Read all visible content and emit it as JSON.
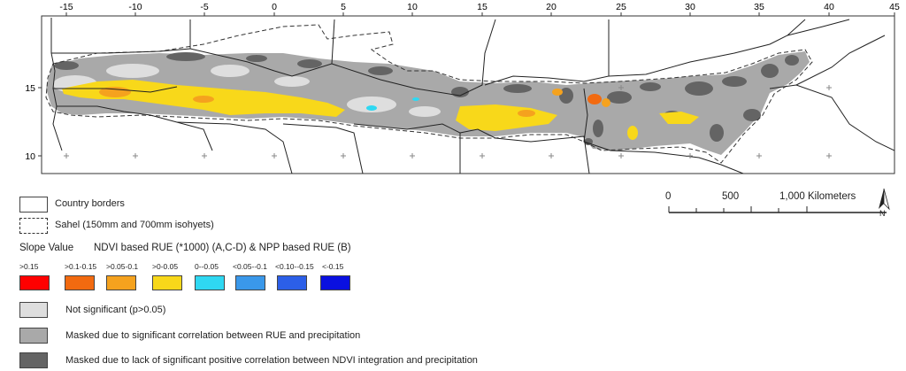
{
  "map": {
    "lon_ticks": [
      "-15",
      "-10",
      "-5",
      "0",
      "5",
      "10",
      "15",
      "20",
      "25",
      "30",
      "35",
      "40",
      "45"
    ],
    "lat_ticks": [
      "15",
      "10"
    ]
  },
  "legend": {
    "country_borders": "Country borders",
    "sahel": "Sahel (150mm and 700mm isohyets)",
    "slope_value": "Slope Value",
    "slope_desc": "NDVI based RUE (*1000) (A,C-D) & NPP based RUE (B)",
    "classes": [
      {
        "label": ">0.15",
        "color": "#ff0000"
      },
      {
        "label": ">0.1-0.15",
        "color": "#f26a10"
      },
      {
        "label": ">0.05-0.1",
        "color": "#f5a21e"
      },
      {
        "label": ">0-0.05",
        "color": "#f8d81a"
      },
      {
        "label": "0--0.05",
        "color": "#2fd8f2"
      },
      {
        "label": "<0.05--0.1",
        "color": "#3a98ea"
      },
      {
        "label": "<0.10--0.15",
        "color": "#2c5fe8"
      },
      {
        "label": "<-0.15",
        "color": "#0a10e0"
      }
    ],
    "not_significant": "Not significant (p>0.05)",
    "masked_rue": "Masked due to significant correlation between RUE and precipitation",
    "masked_ndvi": "Masked due to lack of significant positive correlation between NDVI integration and precipitation",
    "colors": {
      "not_significant": "#dedede",
      "masked_rue": "#a9a9a9",
      "masked_ndvi": "#646464"
    }
  },
  "scale_bar": {
    "labels": [
      "0",
      "500",
      "1,000 Kilometers"
    ],
    "north": "N"
  }
}
